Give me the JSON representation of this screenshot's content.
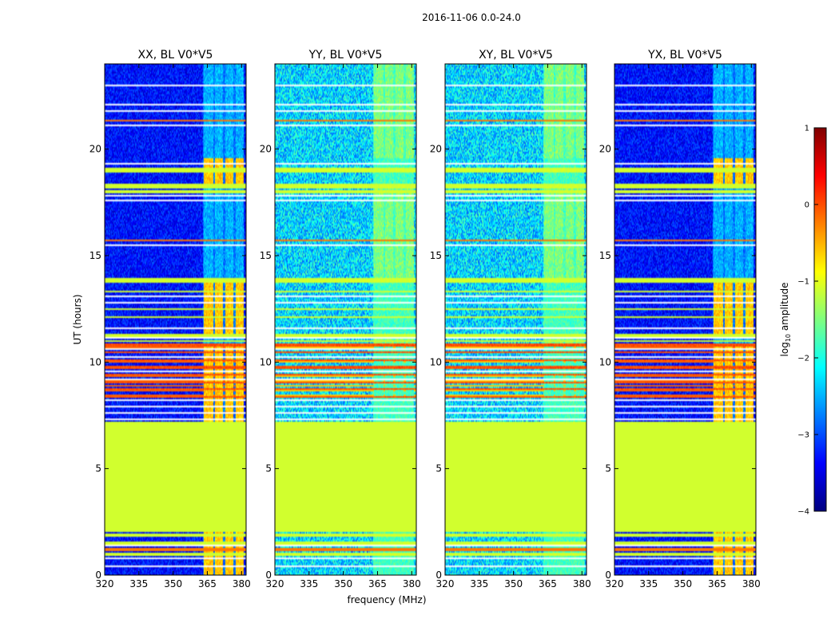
{
  "chart_data": {
    "type": "heatmap",
    "title": "2016-11-06 0.0-24.0",
    "xlabel": "frequency (MHz)",
    "ylabel": "UT (hours)",
    "xlim": [
      320,
      382
    ],
    "ylim": [
      0,
      24
    ],
    "xticks": [
      320,
      335,
      350,
      365,
      380
    ],
    "yticks": [
      0,
      5,
      10,
      15,
      20
    ],
    "colormap": "jet",
    "colorbar": {
      "label_prefix": "log",
      "label_sub": "10",
      "label_suffix": " amplitude",
      "range": [
        -4,
        1
      ],
      "ticks": [
        -4,
        -3,
        -2,
        -1,
        0,
        1
      ],
      "tick_labels": [
        "−4",
        "−3",
        "−2",
        "−1",
        "0",
        "1"
      ],
      "colors": [
        "#00007f",
        "#0000ff",
        "#007fff",
        "#00ffff",
        "#7fff7f",
        "#ffff00",
        "#ff7f00",
        "#ff0000",
        "#7f0000"
      ]
    },
    "flagged_value": -1.1,
    "panels": [
      {
        "title": "XX, BL V0*V5",
        "polarization": "XX",
        "baseline": "V0*V5",
        "background_log_amplitude": -3.3,
        "rfi_log_amplitude": -0.6
      },
      {
        "title": "YY, BL V0*V5",
        "polarization": "YY",
        "baseline": "V0*V5",
        "background_log_amplitude": -2.3,
        "rfi_log_amplitude": -1.8
      },
      {
        "title": "XY, BL V0*V5",
        "polarization": "XY",
        "baseline": "V0*V5",
        "background_log_amplitude": -2.3,
        "rfi_log_amplitude": -1.8
      },
      {
        "title": "YX, BL V0*V5",
        "polarization": "YX",
        "baseline": "V0*V5",
        "background_log_amplitude": -3.3,
        "rfi_log_amplitude": -0.6
      }
    ],
    "flagged_ut_range": [
      2.0,
      7.1
    ],
    "rfi_channels_mhz": [
      [
        363.5,
        367.5
      ],
      [
        368.5,
        372
      ],
      [
        373,
        376.5
      ],
      [
        377.5,
        381
      ]
    ]
  }
}
